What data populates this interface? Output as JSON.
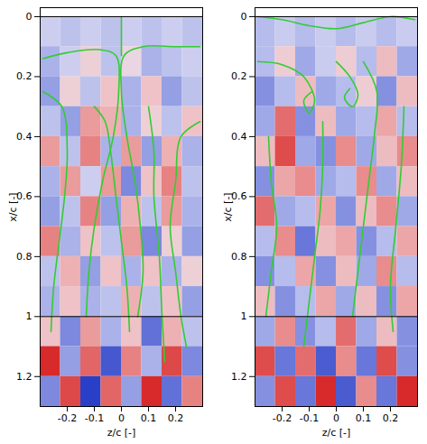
{
  "chart_data": [
    {
      "type": "heatmap",
      "xlabel": "z/c [-]",
      "ylabel": "x/c [-]",
      "xlim": [
        -0.3,
        0.3
      ],
      "ylim": [
        1.3,
        -0.03
      ],
      "xticks": [
        -0.2,
        -0.1,
        0,
        0.1,
        0.2
      ],
      "yticks": [
        0,
        0.2,
        0.4,
        0.6,
        0.8,
        1,
        1.2
      ],
      "color": "#33cc33",
      "reference_lines": [
        0,
        1
      ],
      "cell_z": [
        -0.2625,
        -0.1875,
        -0.1125,
        -0.0375,
        0.0375,
        0.1125,
        0.1875,
        0.2625
      ],
      "cell_x": [
        0.05,
        0.15,
        0.25,
        0.35,
        0.45,
        0.55,
        0.65,
        0.75,
        0.85,
        0.95,
        1.05,
        1.15,
        1.25
      ],
      "cells": [
        [
          -0.2,
          -0.3,
          -0.2,
          -0.3,
          -0.2,
          -0.3,
          -0.2,
          -0.3
        ],
        [
          -0.4,
          -0.2,
          0.2,
          -0.3,
          0.1,
          -0.4,
          -0.3,
          -0.2
        ],
        [
          -0.5,
          0.2,
          -0.3,
          0.3,
          -0.4,
          0.3,
          -0.5,
          -0.3
        ],
        [
          -0.3,
          -0.5,
          0.5,
          0.4,
          -0.4,
          0.2,
          -0.3,
          0.3
        ],
        [
          0.5,
          -0.3,
          0.6,
          -0.4,
          0.5,
          -0.5,
          0.4,
          -0.4
        ],
        [
          -0.4,
          0.5,
          -0.2,
          0.5,
          -0.6,
          0.3,
          0.6,
          -0.3
        ],
        [
          -0.5,
          -0.3,
          0.6,
          -0.5,
          0.4,
          -0.3,
          0.5,
          -0.4
        ],
        [
          0.6,
          -0.4,
          0.3,
          -0.3,
          0.5,
          -0.6,
          0.2,
          -0.5
        ],
        [
          -0.3,
          0.4,
          -0.5,
          0.3,
          -0.4,
          0.3,
          -0.4,
          0.2
        ],
        [
          -0.4,
          0.3,
          -0.4,
          -0.3,
          0.4,
          -0.3,
          0.3,
          -0.5
        ],
        [
          0.3,
          -0.6,
          0.5,
          -0.4,
          0.3,
          -0.7,
          0.4,
          -0.3
        ],
        [
          0.9,
          -0.5,
          0.7,
          -0.8,
          0.6,
          -0.4,
          0.8,
          -0.6
        ],
        [
          -0.6,
          0.8,
          -0.9,
          0.7,
          -0.5,
          0.9,
          -0.7,
          0.6
        ]
      ],
      "streamlines": [
        [
          [
            -0.29,
            0.14
          ],
          [
            -0.2,
            0.12
          ],
          [
            -0.08,
            0.11
          ],
          [
            -0.02,
            0.13
          ],
          [
            -0.01,
            0.25
          ],
          [
            -0.03,
            0.4
          ],
          [
            -0.07,
            0.55
          ],
          [
            -0.1,
            0.7
          ],
          [
            -0.12,
            0.85
          ],
          [
            -0.13,
            1.0
          ]
        ],
        [
          [
            0.29,
            0.1
          ],
          [
            0.2,
            0.1
          ],
          [
            0.08,
            0.1
          ],
          [
            0.01,
            0.13
          ],
          [
            0.0,
            0.25
          ],
          [
            0.02,
            0.4
          ],
          [
            0.05,
            0.55
          ],
          [
            0.07,
            0.7
          ],
          [
            0.08,
            0.85
          ],
          [
            0.06,
            1.0
          ]
        ],
        [
          [
            0.0,
            0.0
          ],
          [
            0.0,
            0.05
          ],
          [
            0.0,
            0.13
          ]
        ],
        [
          [
            -0.29,
            0.25
          ],
          [
            -0.22,
            0.3
          ],
          [
            -0.2,
            0.45
          ],
          [
            -0.21,
            0.6
          ],
          [
            -0.23,
            0.75
          ],
          [
            -0.25,
            0.9
          ],
          [
            -0.26,
            1.05
          ]
        ],
        [
          [
            0.29,
            0.35
          ],
          [
            0.22,
            0.4
          ],
          [
            0.2,
            0.55
          ],
          [
            0.18,
            0.7
          ],
          [
            0.2,
            0.85
          ],
          [
            0.22,
            1.0
          ],
          [
            0.24,
            1.1
          ]
        ],
        [
          [
            -0.1,
            0.3
          ],
          [
            -0.06,
            0.35
          ],
          [
            -0.04,
            0.45
          ],
          [
            -0.02,
            0.6
          ],
          [
            0.0,
            0.75
          ],
          [
            0.02,
            0.9
          ],
          [
            0.03,
            1.05
          ]
        ],
        [
          [
            0.1,
            0.3
          ],
          [
            0.12,
            0.45
          ],
          [
            0.12,
            0.6
          ],
          [
            0.14,
            0.8
          ],
          [
            0.15,
            1.0
          ],
          [
            0.16,
            1.15
          ]
        ]
      ]
    },
    {
      "type": "heatmap",
      "xlabel": "z/c [-]",
      "ylabel": "x/c [-]",
      "xlim": [
        -0.3,
        0.3
      ],
      "ylim": [
        1.3,
        -0.03
      ],
      "xticks": [
        -0.2,
        -0.1,
        0,
        0.1,
        0.2
      ],
      "yticks": [
        0,
        0.2,
        0.4,
        0.6,
        0.8,
        1,
        1.2
      ],
      "color": "#33cc33",
      "reference_lines": [
        0,
        1
      ],
      "cell_z": [
        -0.2625,
        -0.1875,
        -0.1125,
        -0.0375,
        0.0375,
        0.1125,
        0.1875,
        0.2625
      ],
      "cell_x": [
        0.05,
        0.15,
        0.25,
        0.35,
        0.45,
        0.55,
        0.65,
        0.75,
        0.85,
        0.95,
        1.05,
        1.15,
        1.25
      ],
      "cells": [
        [
          -0.3,
          -0.2,
          -0.3,
          -0.2,
          -0.3,
          -0.2,
          -0.3,
          -0.2
        ],
        [
          -0.3,
          0.2,
          -0.4,
          -0.2,
          0.2,
          -0.3,
          0.3,
          -0.4
        ],
        [
          -0.5,
          -0.3,
          0.3,
          -0.4,
          -0.3,
          0.2,
          -0.5,
          0.3
        ],
        [
          -0.4,
          0.6,
          -0.5,
          0.3,
          -0.4,
          -0.3,
          0.4,
          -0.3
        ],
        [
          0.3,
          0.7,
          -0.4,
          -0.5,
          0.5,
          -0.4,
          0.3,
          0.5
        ],
        [
          -0.5,
          0.4,
          0.5,
          -0.4,
          -0.3,
          0.5,
          -0.4,
          0.3
        ],
        [
          0.6,
          -0.4,
          -0.3,
          0.4,
          -0.5,
          0.3,
          0.5,
          -0.4
        ],
        [
          -0.3,
          0.5,
          -0.6,
          0.3,
          0.4,
          -0.5,
          -0.3,
          0.4
        ],
        [
          -0.5,
          -0.3,
          0.4,
          -0.5,
          0.3,
          -0.4,
          0.5,
          -0.3
        ],
        [
          0.3,
          -0.5,
          -0.3,
          0.4,
          -0.4,
          0.3,
          -0.5,
          0.4
        ],
        [
          -0.4,
          0.5,
          -0.5,
          -0.3,
          0.6,
          -0.4,
          0.3,
          -0.5
        ],
        [
          0.7,
          -0.6,
          0.6,
          -0.7,
          0.5,
          -0.6,
          0.7,
          -0.5
        ],
        [
          -0.5,
          0.7,
          -0.6,
          0.8,
          -0.7,
          0.5,
          -0.6,
          0.8
        ]
      ],
      "streamlines": [
        [
          [
            -0.29,
            0.0
          ],
          [
            -0.2,
            0.01
          ],
          [
            -0.1,
            0.03
          ],
          [
            0.0,
            0.04
          ],
          [
            0.1,
            0.02
          ],
          [
            0.2,
            0.0
          ],
          [
            0.29,
            0.01
          ]
        ],
        [
          [
            -0.29,
            0.15
          ],
          [
            -0.2,
            0.16
          ],
          [
            -0.12,
            0.2
          ],
          [
            -0.08,
            0.28
          ],
          [
            -0.1,
            0.32
          ],
          [
            -0.12,
            0.28
          ],
          [
            -0.09,
            0.25
          ]
        ],
        [
          [
            0.0,
            0.15
          ],
          [
            0.05,
            0.2
          ],
          [
            0.08,
            0.26
          ],
          [
            0.06,
            0.3
          ],
          [
            0.03,
            0.27
          ],
          [
            0.05,
            0.24
          ]
        ],
        [
          [
            0.1,
            0.15
          ],
          [
            0.15,
            0.25
          ],
          [
            0.14,
            0.4
          ],
          [
            0.12,
            0.55
          ],
          [
            0.1,
            0.7
          ],
          [
            0.08,
            0.85
          ],
          [
            0.06,
            1.0
          ]
        ],
        [
          [
            -0.05,
            0.35
          ],
          [
            -0.05,
            0.5
          ],
          [
            -0.06,
            0.65
          ],
          [
            -0.08,
            0.8
          ],
          [
            -0.1,
            0.95
          ],
          [
            -0.12,
            1.1
          ]
        ],
        [
          [
            -0.25,
            0.4
          ],
          [
            -0.24,
            0.55
          ],
          [
            -0.22,
            0.7
          ],
          [
            -0.24,
            0.85
          ],
          [
            -0.26,
            1.0
          ]
        ],
        [
          [
            0.25,
            0.3
          ],
          [
            0.24,
            0.5
          ],
          [
            0.22,
            0.7
          ],
          [
            0.2,
            0.9
          ],
          [
            0.21,
            1.05
          ]
        ]
      ]
    }
  ]
}
